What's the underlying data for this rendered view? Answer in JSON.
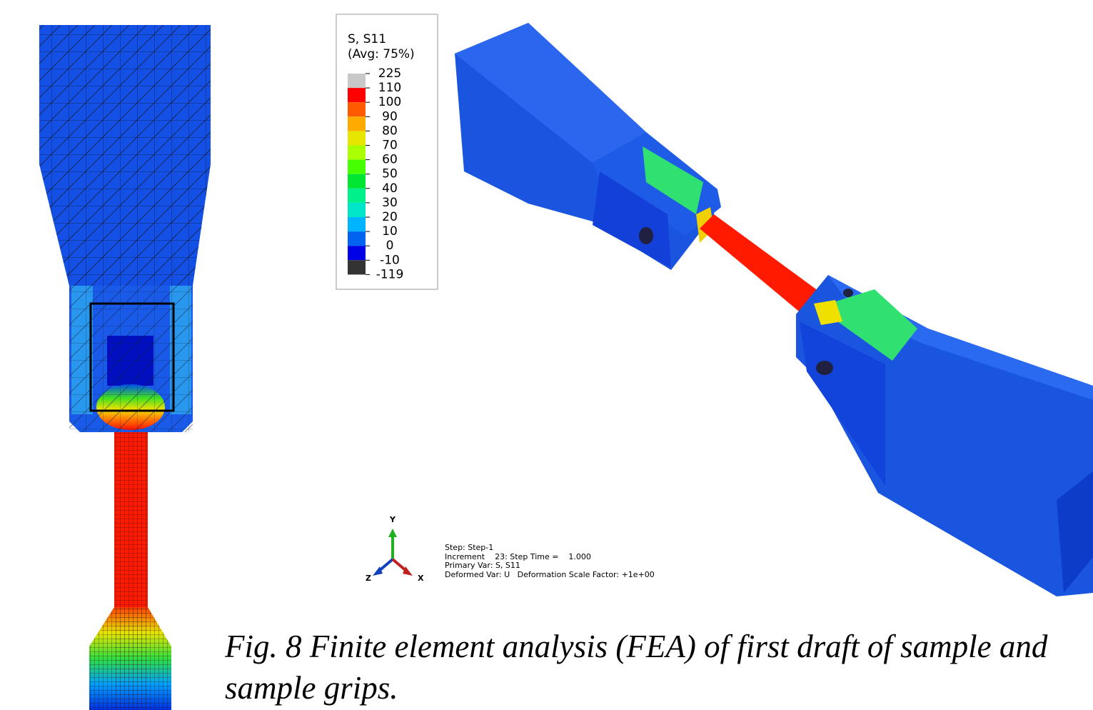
{
  "legend": {
    "title": "S, S11",
    "subtitle": "(Avg: 75%)",
    "labels": [
      "225",
      "110",
      "100",
      "90",
      "80",
      "70",
      "60",
      "50",
      "40",
      "30",
      "20",
      "10",
      "0",
      "-10",
      "-119"
    ],
    "colors": [
      "#c8c8c8",
      "#ff0000",
      "#ff5a00",
      "#ffaa00",
      "#e6e600",
      "#aaff00",
      "#46ff00",
      "#00e632",
      "#00f08c",
      "#00e6c8",
      "#00b4ff",
      "#0064f0",
      "#0000e6",
      "#333333"
    ]
  },
  "triad": {
    "y": "Y",
    "z": "Z",
    "x": "X"
  },
  "info": [
    "Step: Step-1",
    "Increment    23: Step Time =    1.000",
    "Primary Var: S, S11",
    "Deformed Var: U   Deformation Scale Factor: +1e+00"
  ],
  "caption": "Fig. 8 Finite element analysis (FEA) of first draft of sample and sample grips."
}
